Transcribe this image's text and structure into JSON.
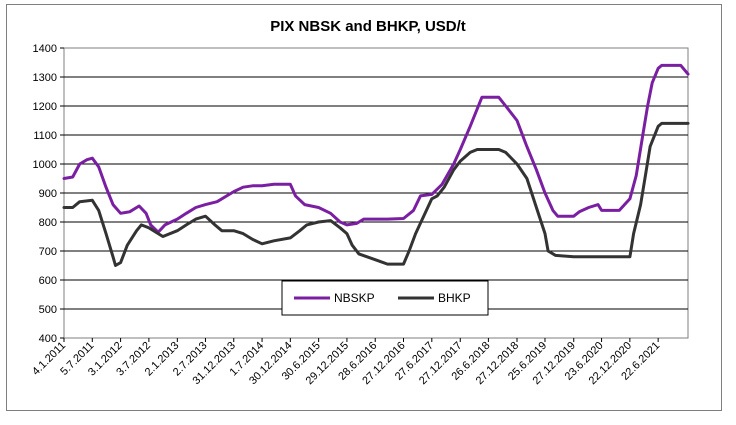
{
  "chart_data": {
    "type": "line",
    "title": "PIX NBSK and BHKP, USD/t",
    "xlabel": "",
    "ylabel": "",
    "ylim": [
      400,
      1400
    ],
    "yticks": [
      400,
      500,
      600,
      700,
      800,
      900,
      1000,
      1100,
      1200,
      1300,
      1400
    ],
    "grid": "horizontal",
    "legend": "bottom-center",
    "xlim": [
      "2011-01-04",
      "2021-12-31"
    ],
    "x_tick_labels": [
      "4.1.2011",
      "5.7.2011",
      "3.1.2012",
      "3.7.2012",
      "2.1.2013",
      "2.7.2013",
      "31.12.2013",
      "1.7.2014",
      "30.12.2014",
      "30.6.2015",
      "29.12.2015",
      "28.6.2016",
      "27.12.2016",
      "27.6.2017",
      "27.12.2017",
      "26.6.2018",
      "27.12.2018",
      "25.6.2019",
      "27.12.2019",
      "23.6.2020",
      "22.12.2020",
      "22.6.2021"
    ],
    "x_tick_dates": [
      "2011-01-04",
      "2011-07-05",
      "2012-01-03",
      "2012-07-03",
      "2013-01-02",
      "2013-07-02",
      "2013-12-31",
      "2014-07-01",
      "2014-12-30",
      "2015-06-30",
      "2015-12-29",
      "2016-06-28",
      "2016-12-27",
      "2017-06-27",
      "2017-12-27",
      "2018-06-26",
      "2018-12-27",
      "2019-06-25",
      "2019-12-27",
      "2020-06-23",
      "2020-12-22",
      "2021-06-22"
    ],
    "series": [
      {
        "name": "NBSKP",
        "color": "#7b1fa2",
        "points": [
          [
            "2011-01-04",
            950
          ],
          [
            "2011-03-01",
            955
          ],
          [
            "2011-04-15",
            1000
          ],
          [
            "2011-06-01",
            1015
          ],
          [
            "2011-07-05",
            1020
          ],
          [
            "2011-08-15",
            990
          ],
          [
            "2011-10-01",
            920
          ],
          [
            "2011-11-15",
            860
          ],
          [
            "2012-01-03",
            830
          ],
          [
            "2012-03-01",
            835
          ],
          [
            "2012-05-01",
            855
          ],
          [
            "2012-06-15",
            830
          ],
          [
            "2012-07-15",
            790
          ],
          [
            "2012-09-01",
            765
          ],
          [
            "2012-10-15",
            790
          ],
          [
            "2013-01-02",
            810
          ],
          [
            "2013-03-01",
            830
          ],
          [
            "2013-05-01",
            850
          ],
          [
            "2013-07-02",
            860
          ],
          [
            "2013-09-15",
            870
          ],
          [
            "2013-12-31",
            905
          ],
          [
            "2014-03-01",
            920
          ],
          [
            "2014-05-01",
            925
          ],
          [
            "2014-07-01",
            925
          ],
          [
            "2014-09-15",
            930
          ],
          [
            "2014-12-30",
            930
          ],
          [
            "2015-02-01",
            890
          ],
          [
            "2015-04-01",
            860
          ],
          [
            "2015-06-30",
            850
          ],
          [
            "2015-09-15",
            830
          ],
          [
            "2015-11-15",
            800
          ],
          [
            "2015-12-29",
            790
          ],
          [
            "2016-03-01",
            795
          ],
          [
            "2016-04-15",
            810
          ],
          [
            "2016-06-28",
            810
          ],
          [
            "2016-09-15",
            810
          ],
          [
            "2016-12-27",
            812
          ],
          [
            "2017-03-01",
            840
          ],
          [
            "2017-04-15",
            890
          ],
          [
            "2017-06-27",
            895
          ],
          [
            "2017-09-01",
            930
          ],
          [
            "2017-11-15",
            1000
          ],
          [
            "2017-12-27",
            1050
          ],
          [
            "2018-03-01",
            1130
          ],
          [
            "2018-04-15",
            1190
          ],
          [
            "2018-05-15",
            1230
          ],
          [
            "2018-06-26",
            1230
          ],
          [
            "2018-09-01",
            1230
          ],
          [
            "2018-10-15",
            1200
          ],
          [
            "2018-12-27",
            1150
          ],
          [
            "2019-03-01",
            1060
          ],
          [
            "2019-05-01",
            980
          ],
          [
            "2019-06-25",
            900
          ],
          [
            "2019-08-15",
            840
          ],
          [
            "2019-09-15",
            820
          ],
          [
            "2019-12-27",
            820
          ],
          [
            "2020-02-01",
            835
          ],
          [
            "2020-04-01",
            850
          ],
          [
            "2020-06-01",
            860
          ],
          [
            "2020-06-23",
            840
          ],
          [
            "2020-09-01",
            840
          ],
          [
            "2020-10-15",
            840
          ],
          [
            "2020-12-22",
            880
          ],
          [
            "2021-02-01",
            960
          ],
          [
            "2021-03-15",
            1100
          ],
          [
            "2021-04-15",
            1200
          ],
          [
            "2021-05-15",
            1280
          ],
          [
            "2021-06-22",
            1330
          ],
          [
            "2021-07-15",
            1340
          ],
          [
            "2021-10-01",
            1340
          ],
          [
            "2021-11-15",
            1340
          ],
          [
            "2021-12-31",
            1310
          ]
        ]
      },
      {
        "name": "BHKP",
        "color": "#333333",
        "points": [
          [
            "2011-01-04",
            850
          ],
          [
            "2011-03-01",
            850
          ],
          [
            "2011-04-15",
            870
          ],
          [
            "2011-07-05",
            875
          ],
          [
            "2011-08-15",
            840
          ],
          [
            "2011-10-01",
            760
          ],
          [
            "2011-11-15",
            680
          ],
          [
            "2011-12-01",
            650
          ],
          [
            "2012-01-03",
            660
          ],
          [
            "2012-02-15",
            720
          ],
          [
            "2012-04-15",
            770
          ],
          [
            "2012-05-15",
            790
          ],
          [
            "2012-07-03",
            780
          ],
          [
            "2012-09-01",
            760
          ],
          [
            "2012-10-01",
            750
          ],
          [
            "2013-01-02",
            770
          ],
          [
            "2013-03-01",
            790
          ],
          [
            "2013-05-01",
            810
          ],
          [
            "2013-07-02",
            820
          ],
          [
            "2013-09-01",
            790
          ],
          [
            "2013-10-15",
            770
          ],
          [
            "2013-12-31",
            770
          ],
          [
            "2014-03-01",
            760
          ],
          [
            "2014-05-01",
            740
          ],
          [
            "2014-07-01",
            725
          ],
          [
            "2014-09-15",
            735
          ],
          [
            "2014-12-30",
            745
          ],
          [
            "2015-03-01",
            770
          ],
          [
            "2015-04-15",
            790
          ],
          [
            "2015-06-30",
            800
          ],
          [
            "2015-09-15",
            805
          ],
          [
            "2015-11-15",
            780
          ],
          [
            "2015-12-29",
            760
          ],
          [
            "2016-02-01",
            720
          ],
          [
            "2016-03-15",
            690
          ],
          [
            "2016-06-28",
            670
          ],
          [
            "2016-09-15",
            655
          ],
          [
            "2016-12-27",
            655
          ],
          [
            "2017-02-01",
            700
          ],
          [
            "2017-03-15",
            760
          ],
          [
            "2017-06-27",
            880
          ],
          [
            "2017-08-01",
            890
          ],
          [
            "2017-09-15",
            920
          ],
          [
            "2017-11-15",
            980
          ],
          [
            "2017-12-27",
            1010
          ],
          [
            "2018-03-01",
            1040
          ],
          [
            "2018-04-15",
            1050
          ],
          [
            "2018-06-26",
            1050
          ],
          [
            "2018-09-01",
            1050
          ],
          [
            "2018-10-15",
            1040
          ],
          [
            "2018-12-27",
            1000
          ],
          [
            "2019-03-01",
            950
          ],
          [
            "2019-05-01",
            850
          ],
          [
            "2019-06-25",
            760
          ],
          [
            "2019-07-15",
            700
          ],
          [
            "2019-09-01",
            685
          ],
          [
            "2019-12-27",
            680
          ],
          [
            "2020-06-23",
            680
          ],
          [
            "2020-12-22",
            680
          ],
          [
            "2021-01-15",
            760
          ],
          [
            "2021-03-01",
            860
          ],
          [
            "2021-04-01",
            960
          ],
          [
            "2021-05-01",
            1060
          ],
          [
            "2021-06-22",
            1130
          ],
          [
            "2021-07-15",
            1140
          ],
          [
            "2021-12-31",
            1140
          ]
        ]
      }
    ]
  }
}
